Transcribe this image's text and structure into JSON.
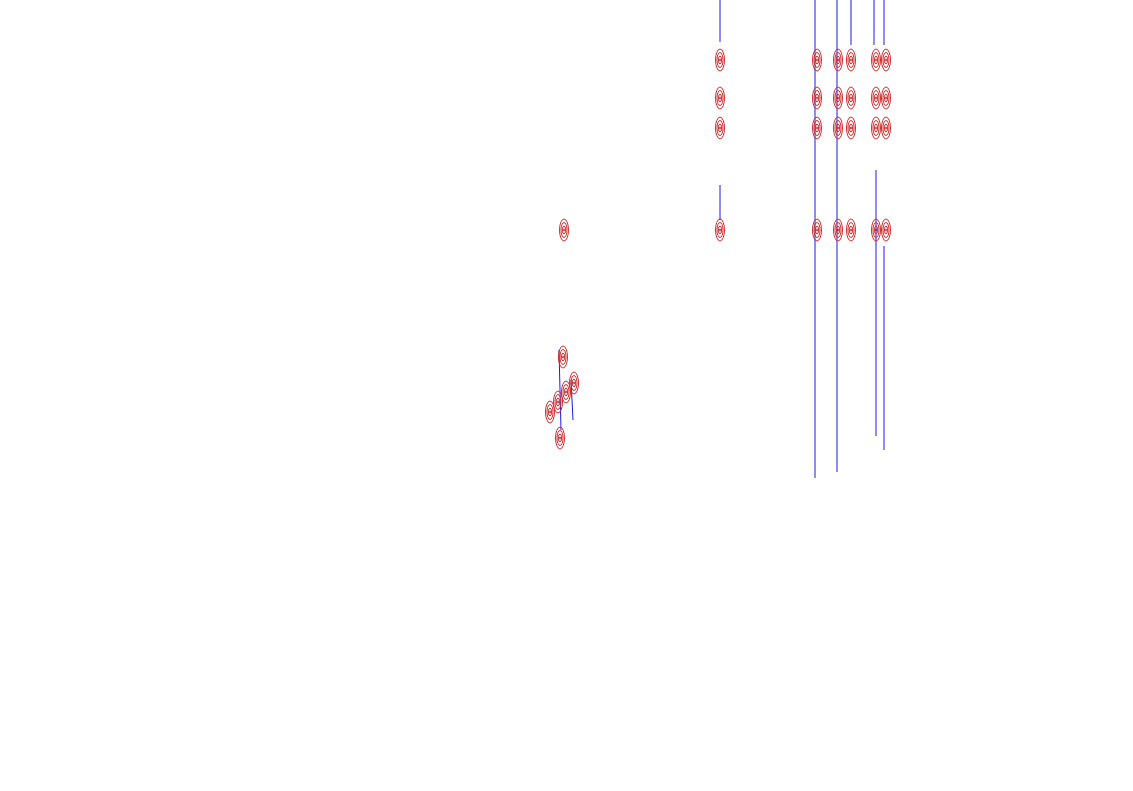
{
  "chart_data": {
    "type": "scatter",
    "tick_labels": false,
    "grid": false,
    "xlim": [
      0,
      1133
    ],
    "ylim": [
      791,
      0
    ],
    "series": [
      {
        "type": "scatter",
        "marker": "contour",
        "color": "#d42a2a",
        "x": [
          720,
          720,
          720,
          720,
          817,
          817,
          817,
          817,
          838,
          838,
          838,
          838,
          851,
          851,
          851,
          851,
          876,
          876,
          876,
          876,
          886,
          886,
          886,
          886,
          564,
          550,
          558,
          566,
          574,
          563,
          560
        ],
        "values": [
          60,
          98,
          128,
          230,
          60,
          98,
          128,
          230,
          60,
          98,
          128,
          230,
          60,
          98,
          128,
          230,
          60,
          98,
          128,
          230,
          60,
          98,
          128,
          230,
          230,
          412,
          402,
          392,
          383,
          357,
          438
        ]
      },
      {
        "type": "line",
        "color": "#1a1ae6",
        "x": [
          720,
          720,
          null,
          720,
          720,
          null,
          815,
          815,
          null,
          837,
          837,
          null,
          851,
          851,
          null,
          874,
          874,
          null,
          876,
          876,
          null,
          884,
          884,
          null,
          884,
          884,
          null,
          559,
          561,
          null,
          571,
          573
        ],
        "values": [
          0,
          42,
          null,
          185,
          220,
          null,
          0,
          478,
          null,
          0,
          472,
          null,
          0,
          45,
          null,
          0,
          45,
          null,
          170,
          436,
          null,
          0,
          45,
          null,
          246,
          450,
          null,
          350,
          430,
          null,
          380,
          420
        ]
      }
    ]
  }
}
